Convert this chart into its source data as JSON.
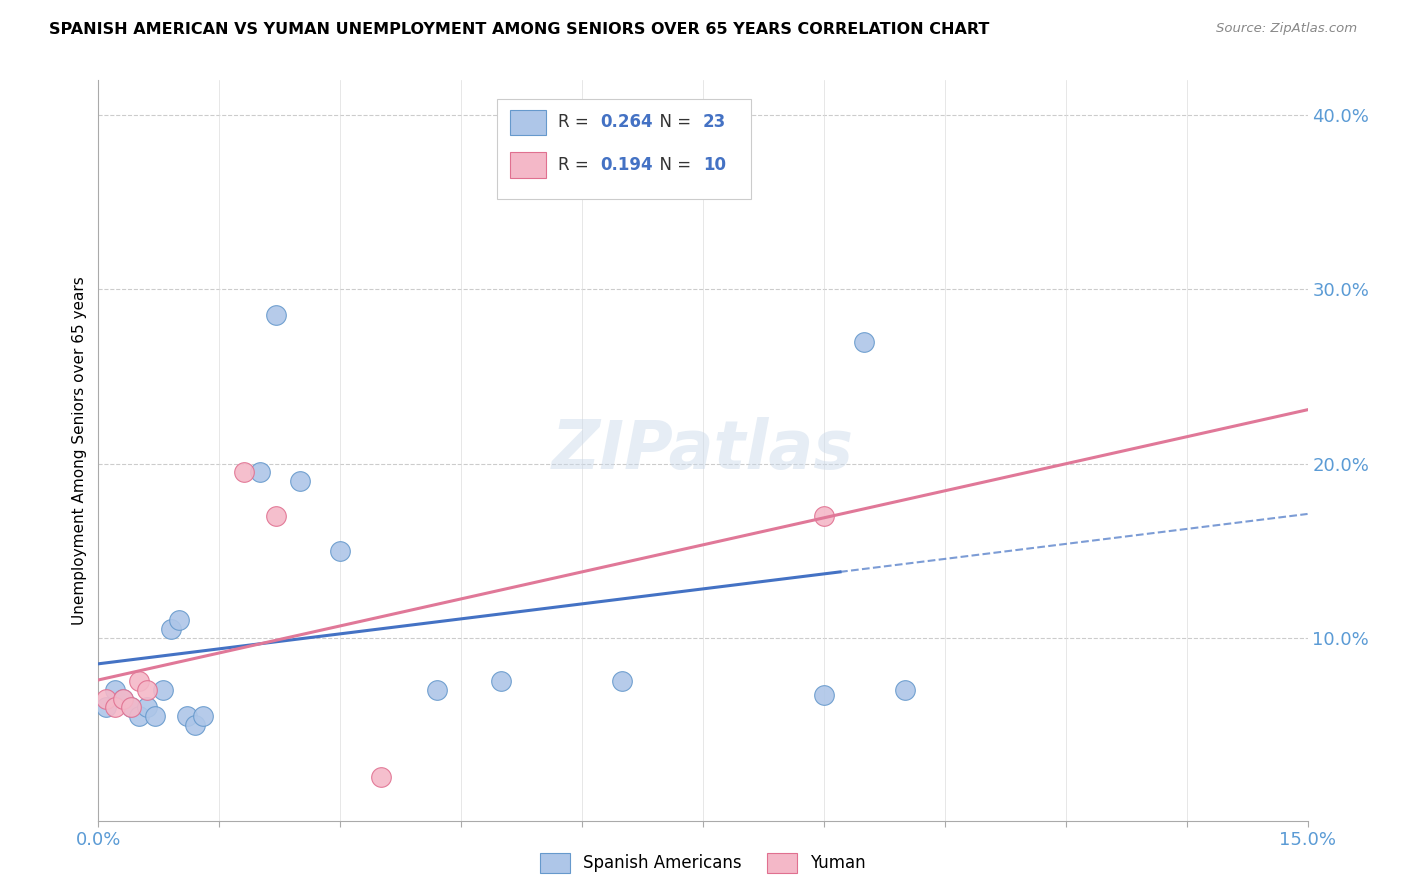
{
  "title": "SPANISH AMERICAN VS YUMAN UNEMPLOYMENT AMONG SENIORS OVER 65 YEARS CORRELATION CHART",
  "source": "Source: ZipAtlas.com",
  "ylabel": "Unemployment Among Seniors over 65 years",
  "xlim": [
    0.0,
    0.15
  ],
  "ylim": [
    -0.005,
    0.42
  ],
  "ytick_right_labels": [
    "10.0%",
    "20.0%",
    "30.0%",
    "40.0%"
  ],
  "ytick_right_values": [
    0.1,
    0.2,
    0.3,
    0.4
  ],
  "R_spanish": 0.264,
  "N_spanish": 23,
  "R_yuman": 0.194,
  "N_yuman": 10,
  "blue_fill": "#aec6e8",
  "blue_edge": "#6699cc",
  "pink_fill": "#f4b8c8",
  "pink_edge": "#e07090",
  "blue_line": "#4472c4",
  "pink_line": "#e07898",
  "spanish_x": [
    0.001,
    0.002,
    0.003,
    0.004,
    0.005,
    0.006,
    0.007,
    0.008,
    0.009,
    0.01,
    0.011,
    0.012,
    0.013,
    0.02,
    0.022,
    0.025,
    0.03,
    0.042,
    0.05,
    0.065,
    0.09,
    0.095,
    0.1
  ],
  "spanish_y": [
    0.06,
    0.07,
    0.065,
    0.06,
    0.055,
    0.06,
    0.055,
    0.07,
    0.105,
    0.11,
    0.055,
    0.05,
    0.055,
    0.195,
    0.285,
    0.19,
    0.15,
    0.07,
    0.075,
    0.075,
    0.067,
    0.27,
    0.07
  ],
  "yuman_x": [
    0.001,
    0.002,
    0.003,
    0.004,
    0.005,
    0.006,
    0.018,
    0.022,
    0.035,
    0.09
  ],
  "yuman_y": [
    0.065,
    0.06,
    0.065,
    0.06,
    0.075,
    0.07,
    0.195,
    0.17,
    0.02,
    0.17
  ],
  "watermark": "ZIPatlas",
  "marker_size": 200
}
